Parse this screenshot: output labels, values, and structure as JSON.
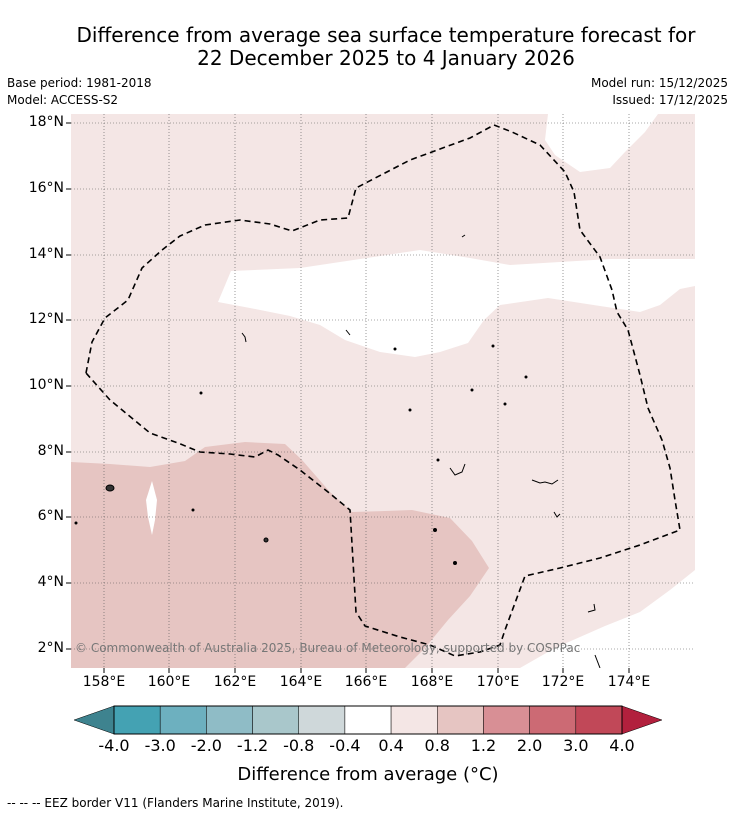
{
  "title": {
    "line1": "Difference from average sea surface temperature forecast for",
    "line2": "22 December 2025 to 4 January 2026"
  },
  "meta": {
    "base_period": "Base period: 1981-2018",
    "model": "Model: ACCESS-S2",
    "model_run": "Model run: 15/12/2025",
    "issued": "Issued: 17/12/2025"
  },
  "map": {
    "lat_labels": [
      "18°N",
      "16°N",
      "14°N",
      "12°N",
      "10°N",
      "8°N",
      "6°N",
      "4°N",
      "2°N"
    ],
    "lon_labels": [
      "158°E",
      "160°E",
      "162°E",
      "164°E",
      "166°E",
      "168°E",
      "170°E",
      "172°E",
      "174°E"
    ],
    "copyright": "© Commonwealth of Australia 2025, Bureau of Meteorology, supported by COSPPac"
  },
  "colorbar": {
    "ticks": [
      "-4.0",
      "-3.0",
      "-2.0",
      "-1.2",
      "-0.8",
      "-0.4",
      "0.4",
      "0.8",
      "1.2",
      "2.0",
      "3.0",
      "4.0"
    ],
    "colors": [
      "#44a2b3",
      "#6db0bf",
      "#8fbcc6",
      "#a9c7cb",
      "#cfd8da",
      "#ffffff",
      "#f4e6e5",
      "#e6c5c2",
      "#d88f95",
      "#cc6a74",
      "#c14858"
    ],
    "under_color": "#3e838f",
    "over_color": "#b2203d",
    "label": "Difference from average (°C)"
  },
  "colors": {
    "anom_04_08": "#f4e6e5",
    "anom_08_12": "#e6c5c2",
    "neutral": "#ffffff"
  },
  "footnote": "--  --  -- EEZ border V11 (Flanders Marine Institute, 2019)."
}
